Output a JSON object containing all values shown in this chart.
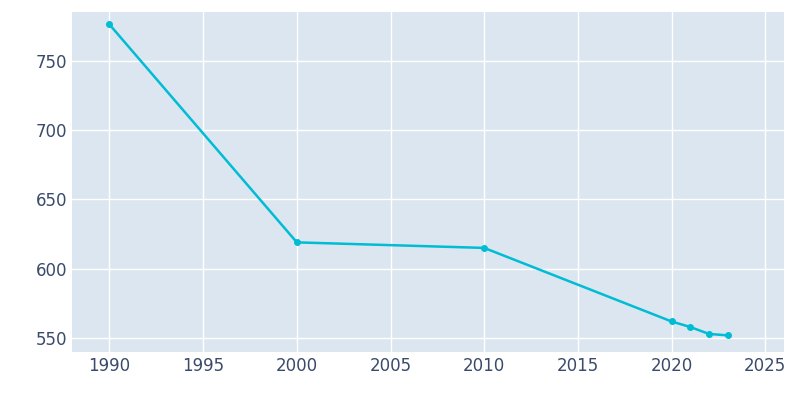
{
  "years": [
    1990,
    2000,
    2010,
    2020,
    2021,
    2022,
    2023
  ],
  "population": [
    776,
    619,
    615,
    562,
    558,
    553,
    552
  ],
  "line_color": "#00BCD4",
  "marker_style": "o",
  "marker_size": 4,
  "line_width": 1.8,
  "plot_bg_color": "#dce6f0",
  "fig_bg_color": "#ffffff",
  "grid_color": "#ffffff",
  "xlim": [
    1988,
    2026
  ],
  "ylim": [
    540,
    785
  ],
  "xticks": [
    1990,
    1995,
    2000,
    2005,
    2010,
    2015,
    2020,
    2025
  ],
  "yticks": [
    550,
    600,
    650,
    700,
    750
  ],
  "tick_color": "#3a4a6b",
  "tick_fontsize": 12
}
